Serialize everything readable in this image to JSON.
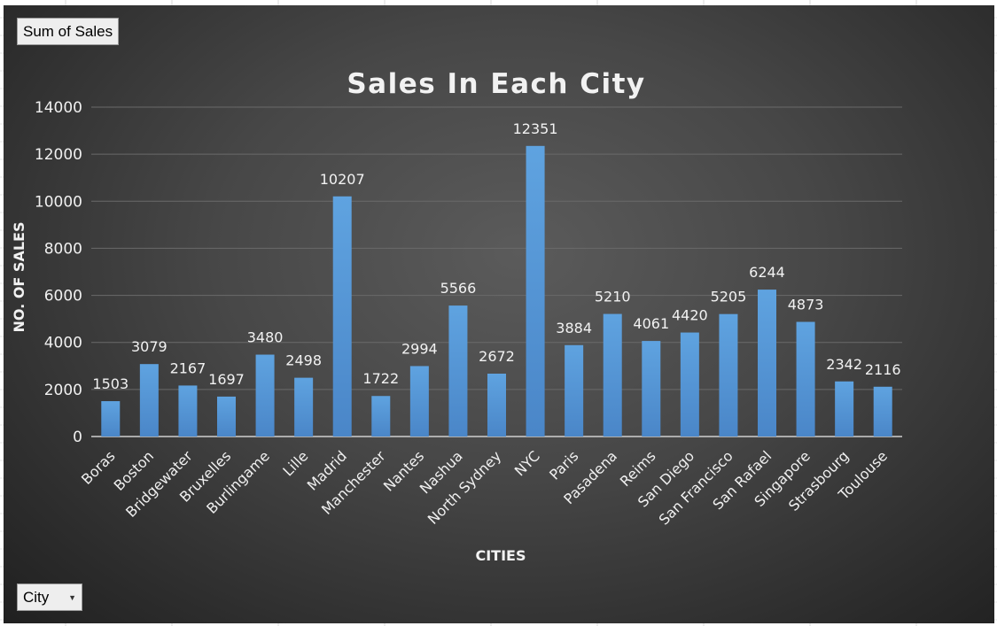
{
  "buttons": {
    "sum_label": "Sum of Sales",
    "city_label": "City",
    "city_icon": "chevron-down-icon"
  },
  "chart_data": {
    "type": "bar",
    "title": "Sales In Each City",
    "xlabel": "CITIES",
    "ylabel": "NO. OF SALES",
    "ylim": [
      0,
      14000
    ],
    "yticks": [
      0,
      2000,
      4000,
      6000,
      8000,
      10000,
      12000,
      14000
    ],
    "grid": true,
    "legend": "none",
    "bar_color": "#5b9bd5",
    "categories": [
      "Boras",
      "Boston",
      "Bridgewater",
      "Bruxelles",
      "Burlingame",
      "Lille",
      "Madrid",
      "Manchester",
      "Nantes",
      "Nashua",
      "North Sydney",
      "NYC",
      "Paris",
      "Pasadena",
      "Reims",
      "San Diego",
      "San Francisco",
      "San Rafael",
      "Singapore",
      "Strasbourg",
      "Toulouse"
    ],
    "values": [
      1503,
      3079,
      2167,
      1697,
      3480,
      2498,
      10207,
      1722,
      2994,
      5566,
      2672,
      12351,
      3884,
      5210,
      4061,
      4420,
      5205,
      6244,
      4873,
      2342,
      2116
    ]
  }
}
